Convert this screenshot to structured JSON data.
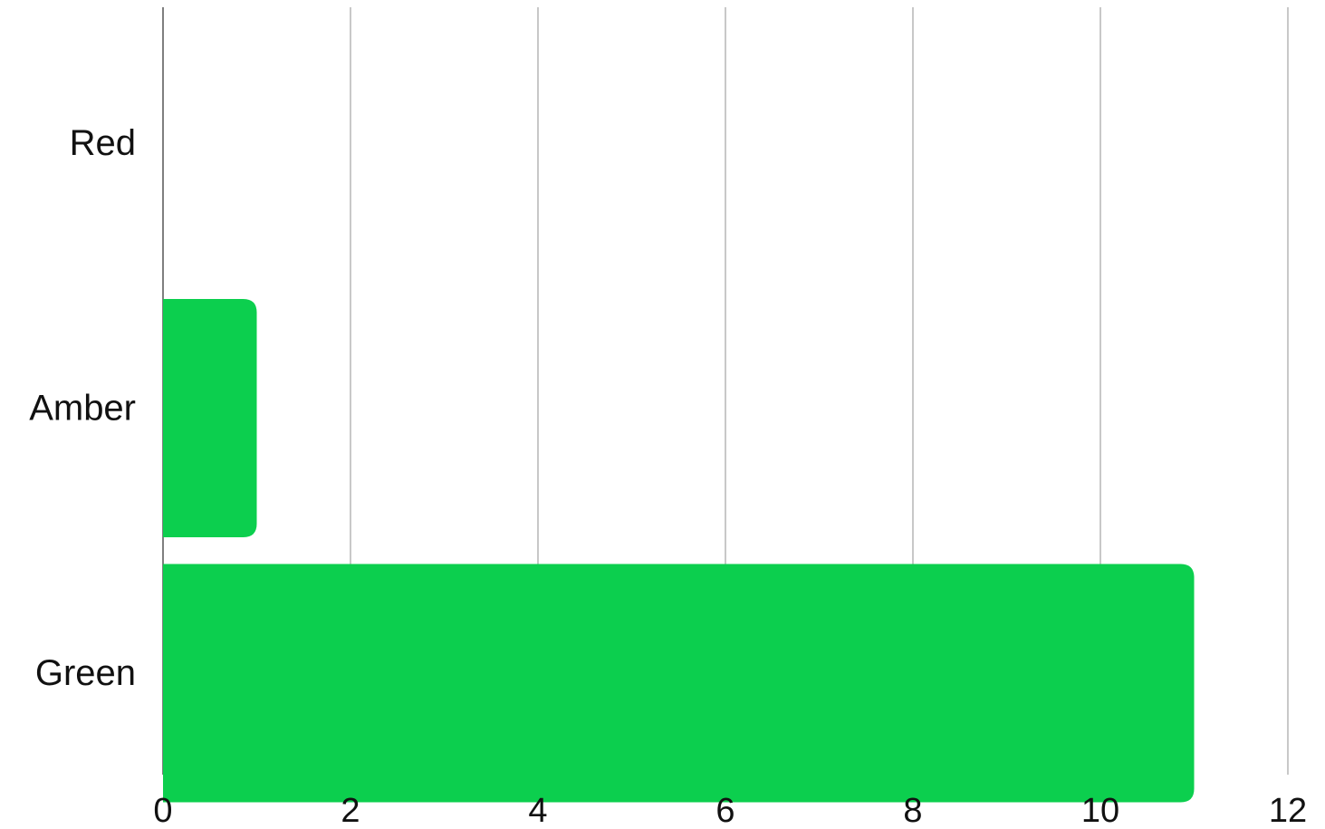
{
  "chart_data": {
    "type": "bar",
    "orientation": "horizontal",
    "categories": [
      "Red",
      "Amber",
      "Green"
    ],
    "values": [
      0,
      1,
      11
    ],
    "xlim": [
      0,
      12
    ],
    "xticks": [
      "0",
      "2",
      "4",
      "6",
      "8",
      "10",
      "12"
    ],
    "title": "",
    "xlabel": "",
    "ylabel": "",
    "grid": "vertical",
    "legend": "none",
    "bar_color": "#0ccf4e"
  }
}
